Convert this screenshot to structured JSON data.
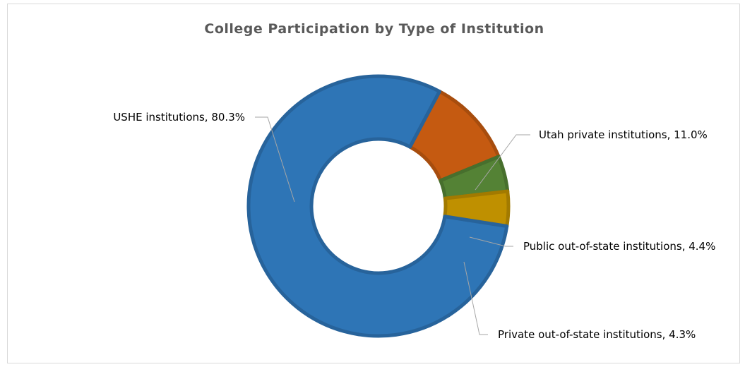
{
  "chart_data": {
    "type": "pie",
    "variant": "donut",
    "title": "College Participation by Type of Institution",
    "slices": [
      {
        "name": "Utah private institutions",
        "value": 11.0,
        "label": "Utah private institutions, 11.0%",
        "color": "#c55a11"
      },
      {
        "name": "Public out-of-state institutions",
        "value": 4.4,
        "label": "Public out-of-state institutions, 4.4%",
        "color": "#548235"
      },
      {
        "name": "Private out-of-state institutions",
        "value": 4.3,
        "label": "Private out-of-state institutions, 4.3%",
        "color": "#bf9000"
      },
      {
        "name": "USHE institutions",
        "value": 80.3,
        "label": "USHE institutions, 80.3%",
        "color": "#2e75b6"
      }
    ],
    "start_slice": "Utah private institutions",
    "direction": "clockwise",
    "leader_line_color": "#a6a6a6"
  }
}
